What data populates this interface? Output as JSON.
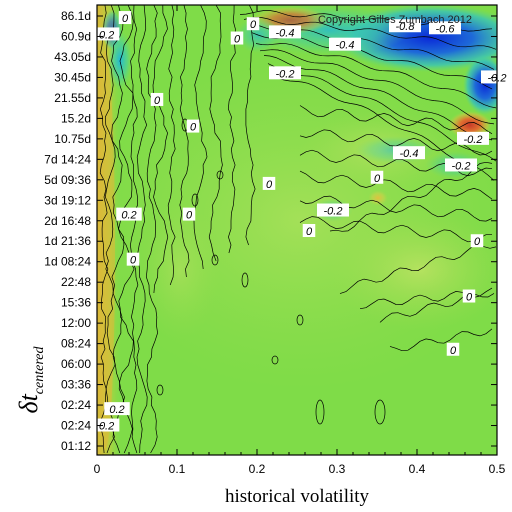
{
  "chart_data": {
    "type": "heatmap",
    "xlabel": "historical volatility",
    "ylabel": "δt",
    "ylabel_subscript": "centered",
    "copyright": "Copyright Gilles Zumbach 2012",
    "xlim": [
      0,
      0.5
    ],
    "x_ticks": [
      "0",
      "0.1",
      "0.2",
      "0.3",
      "0.4",
      "0.5"
    ],
    "y_ticks": [
      "86.1d",
      "60.9d",
      "43.05d",
      "30.45d",
      "21.55d",
      "15.2d",
      "10.75d",
      "7d 14:24",
      "5d 09:36",
      "3d 19:12",
      "2d 16:48",
      "1d 21:36",
      "1d 08:24",
      "22:48",
      "15:36",
      "12:00",
      "08:24",
      "06:00",
      "03:36",
      "02:24",
      "02:24",
      "01:12"
    ],
    "color_scale": {
      "low": "#1f3fd8",
      "mid": "#7be04a",
      "high": "#d8452a"
    },
    "contour_labels": [
      {
        "text": "-0.4",
        "x": 0.235,
        "y": 20.2
      },
      {
        "text": "-0.4",
        "x": 0.31,
        "y": 19.6
      },
      {
        "text": "-0.8",
        "x": 0.385,
        "y": 20.5
      },
      {
        "text": "-0.6",
        "x": 0.435,
        "y": 20.4
      },
      {
        "text": "-0.2",
        "x": 0.235,
        "y": 18.2
      },
      {
        "text": "-0.2",
        "x": 0.47,
        "y": 15.0
      },
      {
        "text": "-0.2",
        "x": 0.455,
        "y": 13.7
      },
      {
        "text": "-0.4",
        "x": 0.39,
        "y": 14.3
      },
      {
        "text": "-0.2",
        "x": 0.295,
        "y": 11.5
      },
      {
        "text": "-0.2",
        "x": 0.5,
        "y": 18.0
      },
      {
        "text": "0",
        "x": 0.195,
        "y": 20.6
      },
      {
        "text": "0",
        "x": 0.175,
        "y": 19.9
      },
      {
        "text": "0",
        "x": 0.075,
        "y": 16.9
      },
      {
        "text": "0",
        "x": 0.12,
        "y": 15.6
      },
      {
        "text": "0",
        "x": 0.215,
        "y": 12.8
      },
      {
        "text": "0",
        "x": 0.35,
        "y": 13.1
      },
      {
        "text": "0",
        "x": 0.115,
        "y": 11.3
      },
      {
        "text": "0",
        "x": 0.265,
        "y": 10.5
      },
      {
        "text": "0",
        "x": 0.045,
        "y": 9.1
      },
      {
        "text": "0",
        "x": 0.475,
        "y": 10.0
      },
      {
        "text": "0",
        "x": 0.465,
        "y": 7.3
      },
      {
        "text": "0",
        "x": 0.445,
        "y": 4.7
      },
      {
        "text": "0",
        "x": 0.035,
        "y": 20.9
      },
      {
        "text": "0.2",
        "x": 0.012,
        "y": 20.1
      },
      {
        "text": "0.2",
        "x": 0.04,
        "y": 11.3
      },
      {
        "text": "0.2",
        "x": 0.012,
        "y": 1.0
      },
      {
        "text": "0.2",
        "x": 0.025,
        "y": 1.8
      }
    ]
  }
}
